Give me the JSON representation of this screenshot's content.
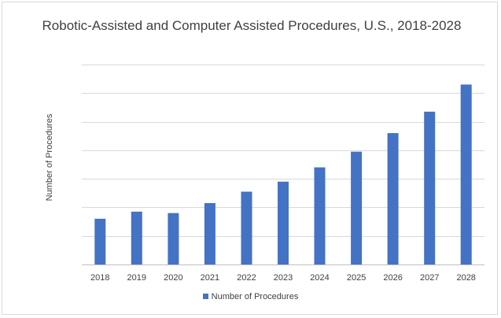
{
  "chart_data": {
    "type": "bar",
    "title": "Robotic-Assisted and Computer Assisted Procedures, U.S., 2018-2028",
    "ylabel": "Number of Procedures",
    "xlabel": "",
    "categories": [
      "2018",
      "2019",
      "2020",
      "2021",
      "2022",
      "2023",
      "2024",
      "2025",
      "2026",
      "2027",
      "2028"
    ],
    "series": [
      {
        "name": "Number of Procedures",
        "color": "#4472c4",
        "values": [
          1.6,
          1.85,
          1.8,
          2.15,
          2.55,
          2.9,
          3.4,
          3.95,
          4.6,
          5.35,
          6.3
        ]
      }
    ],
    "ylim": [
      0,
      7
    ],
    "y_tick_labels_shown": false,
    "grid": true,
    "legend": "bottom"
  }
}
